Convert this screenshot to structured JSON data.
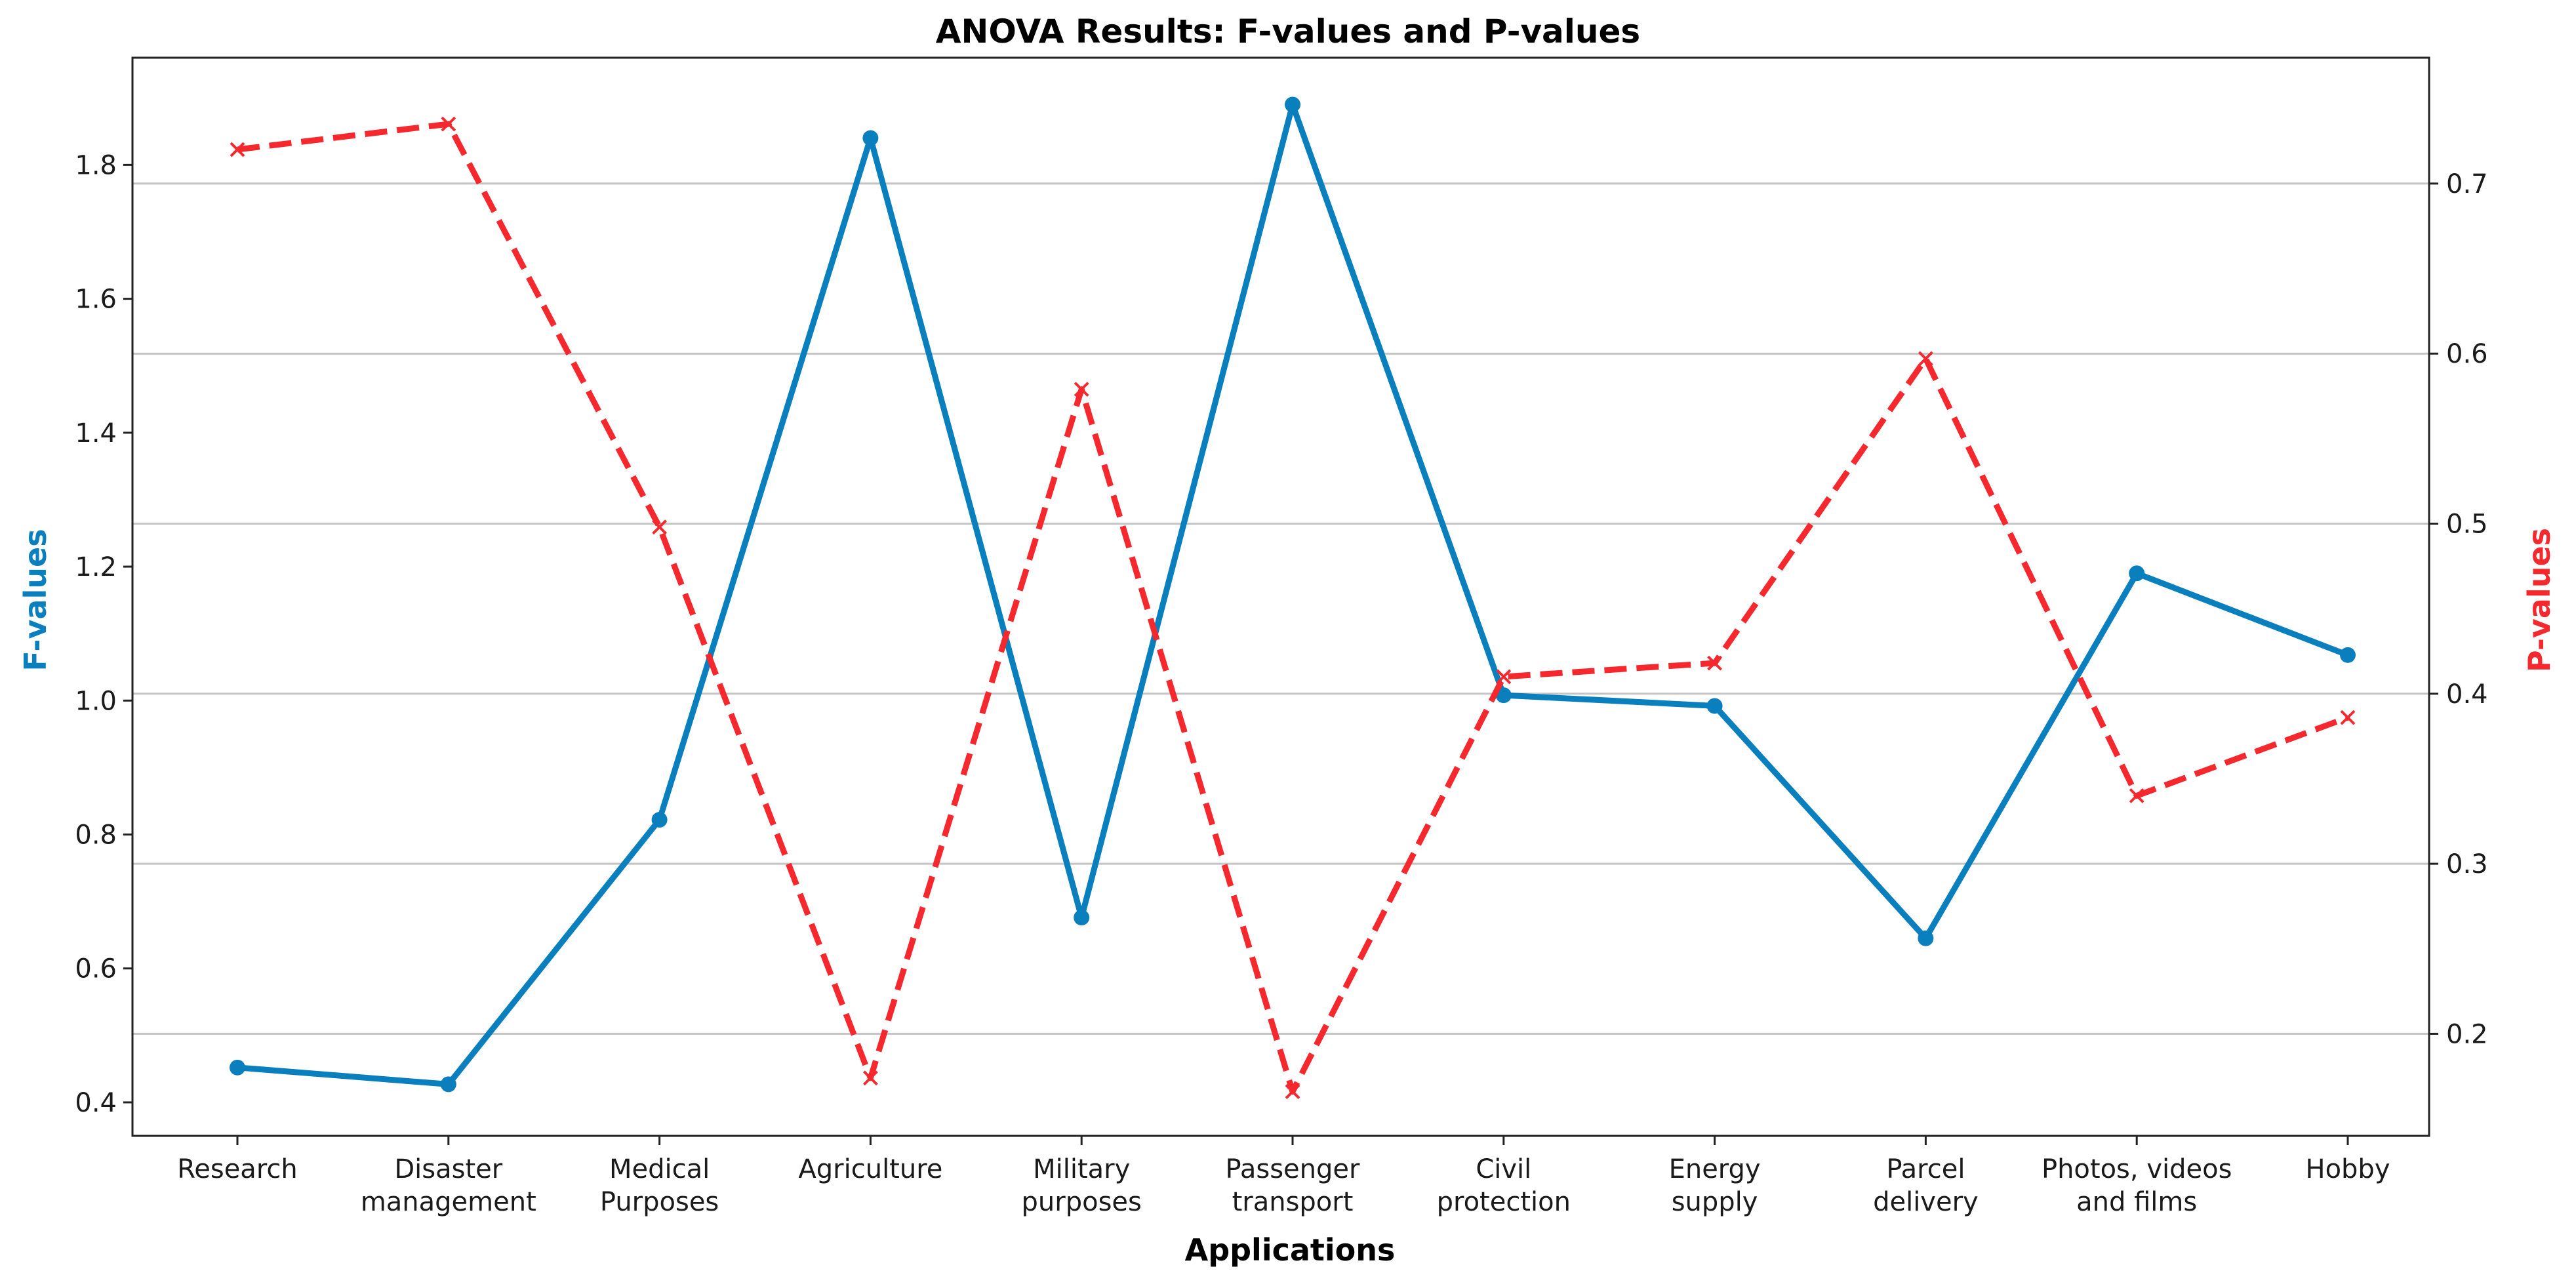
{
  "chart_data": {
    "type": "line",
    "title": "ANOVA Results: F-values and P-values",
    "xlabel": "Applications",
    "ylabel_left": "F-values",
    "ylabel_right": "P-values",
    "categories": [
      [
        "Research"
      ],
      [
        "Disaster",
        "management"
      ],
      [
        "Medical",
        "Purposes"
      ],
      [
        "Agriculture"
      ],
      [
        "Military",
        "purposes"
      ],
      [
        "Passenger",
        "transport"
      ],
      [
        "Civil",
        "protection"
      ],
      [
        "Energy",
        "supply"
      ],
      [
        "Parcel",
        "delivery"
      ],
      [
        "Photos, videos",
        "and films"
      ],
      [
        "Hobby"
      ]
    ],
    "ylim_left": [
      0.35,
      1.96
    ],
    "ylim_right": [
      0.14,
      0.774
    ],
    "yticks_left": [
      "0.4",
      "0.6",
      "0.8",
      "1.0",
      "1.2",
      "1.4",
      "1.6",
      "1.8"
    ],
    "yticks_right": [
      "0.2",
      "0.3",
      "0.4",
      "0.5",
      "0.6",
      "0.7"
    ],
    "grid": "right-axis horizontal",
    "series": [
      {
        "name": "F-values",
        "axis": "left",
        "color": "#0a7fbe",
        "style": "solid",
        "marker": "circle",
        "values": [
          0.452,
          0.427,
          0.822,
          1.84,
          0.676,
          1.89,
          1.008,
          0.992,
          0.645,
          1.19,
          1.068
        ]
      },
      {
        "name": "P-values",
        "axis": "right",
        "color": "#f5282d",
        "style": "dashed",
        "marker": "x",
        "values": [
          0.72,
          0.735,
          0.498,
          0.174,
          0.579,
          0.166,
          0.41,
          0.418,
          0.597,
          0.34,
          0.386
        ]
      }
    ]
  }
}
